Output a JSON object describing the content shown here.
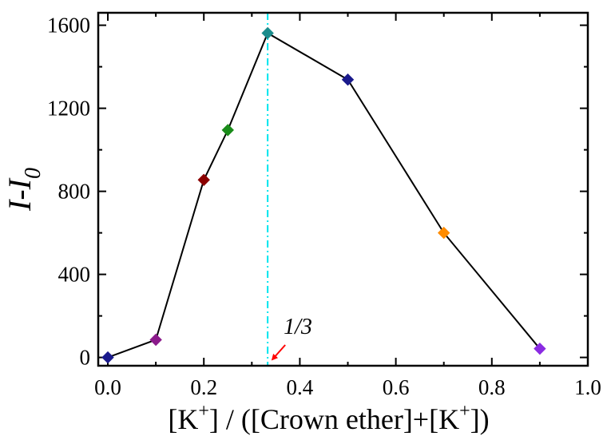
{
  "chart_data": {
    "type": "line",
    "title": "",
    "xlabel_parts": {
      "open": "[K",
      "sup": "+",
      "mid": "] / ([Crown ether]+[K",
      "sup2": "+",
      "close": "])"
    },
    "ylabel_parts": {
      "main": "I-I",
      "sub": "0"
    },
    "xlim": [
      -0.02,
      1.0
    ],
    "ylim": [
      -40,
      1660
    ],
    "xticks": [
      0.0,
      0.2,
      0.4,
      0.6,
      0.8,
      1.0
    ],
    "xtick_labels": [
      "0.0",
      "0.2",
      "0.4",
      "0.6",
      "0.8",
      "1.0"
    ],
    "yticks": [
      0,
      400,
      800,
      1200,
      1600
    ],
    "ytick_labels": [
      "0",
      "400",
      "800",
      "1200",
      "1600"
    ],
    "grid": false,
    "legend": "none",
    "series": [
      {
        "line_color": "#000000",
        "marker": "diamond",
        "points": [
          {
            "x": 0.0,
            "y": 0,
            "color": "#1a1a8c"
          },
          {
            "x": 0.1,
            "y": 85,
            "color": "#8b1a8b"
          },
          {
            "x": 0.2,
            "y": 855,
            "color": "#8b0000"
          },
          {
            "x": 0.25,
            "y": 1095,
            "color": "#1a8c1a"
          },
          {
            "x": 0.333,
            "y": 1562,
            "color": "#1a8c8c"
          },
          {
            "x": 0.5,
            "y": 1338,
            "color": "#1a1a8c"
          },
          {
            "x": 0.7,
            "y": 600,
            "color": "#ff8c00"
          },
          {
            "x": 0.9,
            "y": 42,
            "color": "#8a2be2"
          }
        ]
      }
    ],
    "reference_line": {
      "x": 0.333,
      "color": "#00e5ee",
      "style": "dash-dot"
    },
    "annotation": {
      "text": "1/3",
      "x": 0.333,
      "arrow_color": "#ff0000"
    }
  }
}
